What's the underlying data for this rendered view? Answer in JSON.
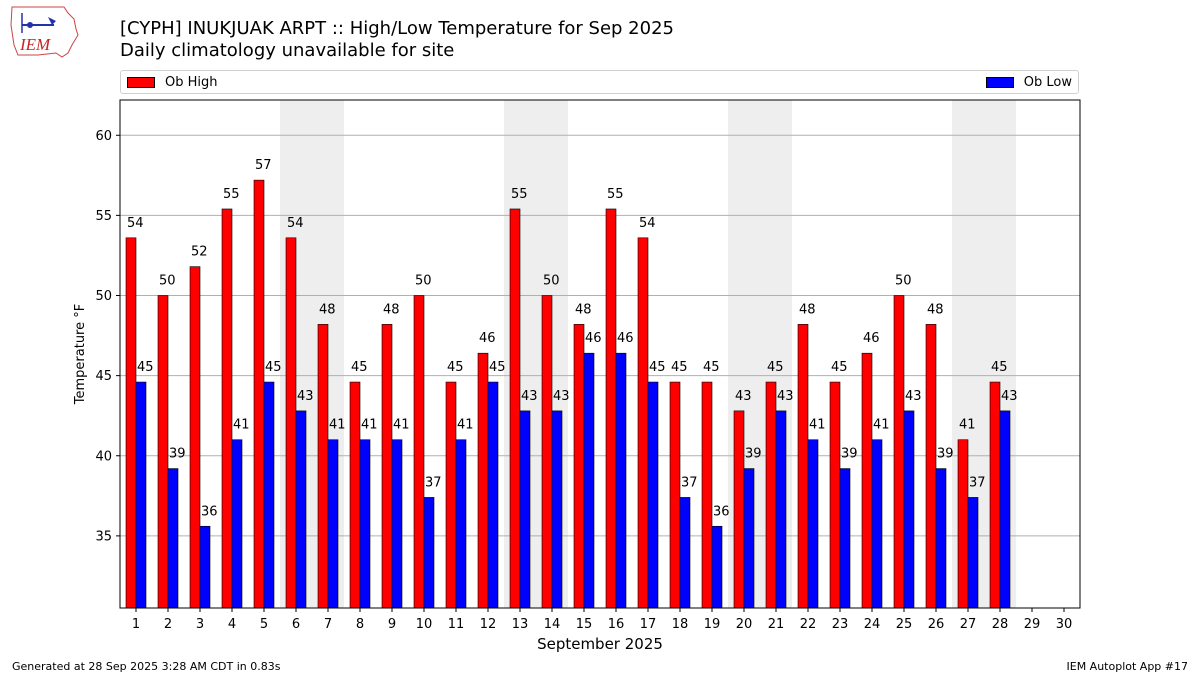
{
  "title_line1": "[CYPH] INUKJUAK ARPT :: High/Low Temperature for Sep 2025",
  "title_line2": "Daily climatology unavailable for site",
  "logo_text": "IEM",
  "footer_left": "Generated at 28 Sep 2025 3:28 AM CDT in 0.83s",
  "footer_right": "IEM Autoplot App #17",
  "colors": {
    "high": "#ff0000",
    "low": "#0000ff",
    "weekend": "#eeeeee",
    "grid": "#b0b0b0"
  },
  "chart_data": {
    "type": "bar",
    "xlabel": "September 2025",
    "ylabel": "Temperature °F",
    "ylim": [
      30.5,
      62.2
    ],
    "yticks": [
      35,
      40,
      45,
      50,
      55,
      60
    ],
    "grid": true,
    "legend_placement": "top",
    "categories": [
      "1",
      "2",
      "3",
      "4",
      "5",
      "6",
      "7",
      "8",
      "9",
      "10",
      "11",
      "12",
      "13",
      "14",
      "15",
      "16",
      "17",
      "18",
      "19",
      "20",
      "21",
      "22",
      "23",
      "24",
      "25",
      "26",
      "27",
      "28",
      "29",
      "30"
    ],
    "weekend_days": [
      6,
      7,
      13,
      14,
      20,
      21,
      27,
      28
    ],
    "series": [
      {
        "name": "Ob High",
        "color": "#ff0000",
        "values": [
          53.6,
          50.0,
          51.8,
          55.4,
          57.2,
          53.6,
          48.2,
          44.6,
          48.2,
          50.0,
          44.6,
          46.4,
          55.4,
          50.0,
          48.2,
          55.4,
          53.6,
          44.6,
          44.6,
          42.8,
          44.6,
          48.2,
          44.6,
          46.4,
          50.0,
          48.2,
          41.0,
          44.6,
          null,
          null
        ],
        "labels": [
          "54",
          "50",
          "52",
          "55",
          "57",
          "54",
          "48",
          "45",
          "48",
          "50",
          "45",
          "46",
          "55",
          "50",
          "48",
          "55",
          "54",
          "45",
          "45",
          "43",
          "45",
          "48",
          "45",
          "46",
          "50",
          "48",
          "41",
          "45",
          "",
          ""
        ]
      },
      {
        "name": "Ob Low",
        "color": "#0000ff",
        "values": [
          44.6,
          39.2,
          35.6,
          41.0,
          44.6,
          42.8,
          41.0,
          41.0,
          41.0,
          37.4,
          41.0,
          44.6,
          42.8,
          42.8,
          46.4,
          46.4,
          44.6,
          37.4,
          35.6,
          39.2,
          42.8,
          41.0,
          39.2,
          41.0,
          42.8,
          39.2,
          37.4,
          42.8,
          null,
          null
        ],
        "labels": [
          "45",
          "39",
          "36",
          "41",
          "45",
          "43",
          "41",
          "41",
          "41",
          "37",
          "41",
          "45",
          "43",
          "43",
          "46",
          "46",
          "45",
          "37",
          "36",
          "39",
          "43",
          "41",
          "39",
          "41",
          "43",
          "39",
          "37",
          "43",
          "",
          ""
        ]
      }
    ]
  }
}
